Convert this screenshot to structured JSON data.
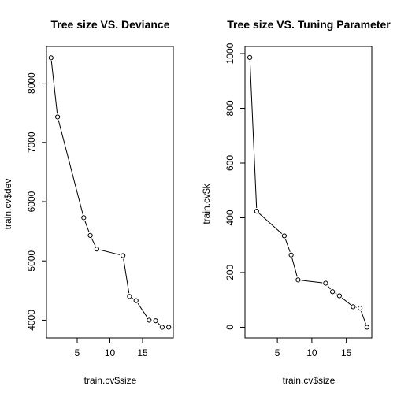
{
  "chart_data": [
    {
      "type": "line",
      "title": "Tree size  VS. Deviance",
      "xlabel": "train.cv$size",
      "ylabel": "train.cv$dev",
      "xlim": [
        0.3,
        19.7
      ],
      "ylim": [
        3700,
        8620
      ],
      "xticks": [
        5,
        10,
        15
      ],
      "yticks": [
        4000,
        5000,
        6000,
        7000,
        8000
      ],
      "x": [
        1,
        2,
        6,
        7,
        8,
        12,
        13,
        14,
        16,
        17,
        18,
        19
      ],
      "y": [
        8430,
        7430,
        5730,
        5430,
        5200,
        5090,
        4400,
        4330,
        4000,
        3990,
        3880,
        3880
      ]
    },
    {
      "type": "line",
      "title": "Tree size  VS. Tuning Parameter",
      "xlabel": "train.cv$size",
      "ylabel": "train.cv$k",
      "xlim": [
        0.3,
        18.7
      ],
      "ylim": [
        -39,
        1026
      ],
      "xticks": [
        5,
        10,
        15
      ],
      "yticks": [
        0,
        200,
        400,
        600,
        800,
        1000
      ],
      "x": [
        1,
        2,
        6,
        7,
        8,
        12,
        13,
        14,
        16,
        17,
        18
      ],
      "y": [
        986,
        424,
        334,
        264,
        173,
        161,
        130,
        115,
        75,
        70,
        0
      ]
    }
  ]
}
